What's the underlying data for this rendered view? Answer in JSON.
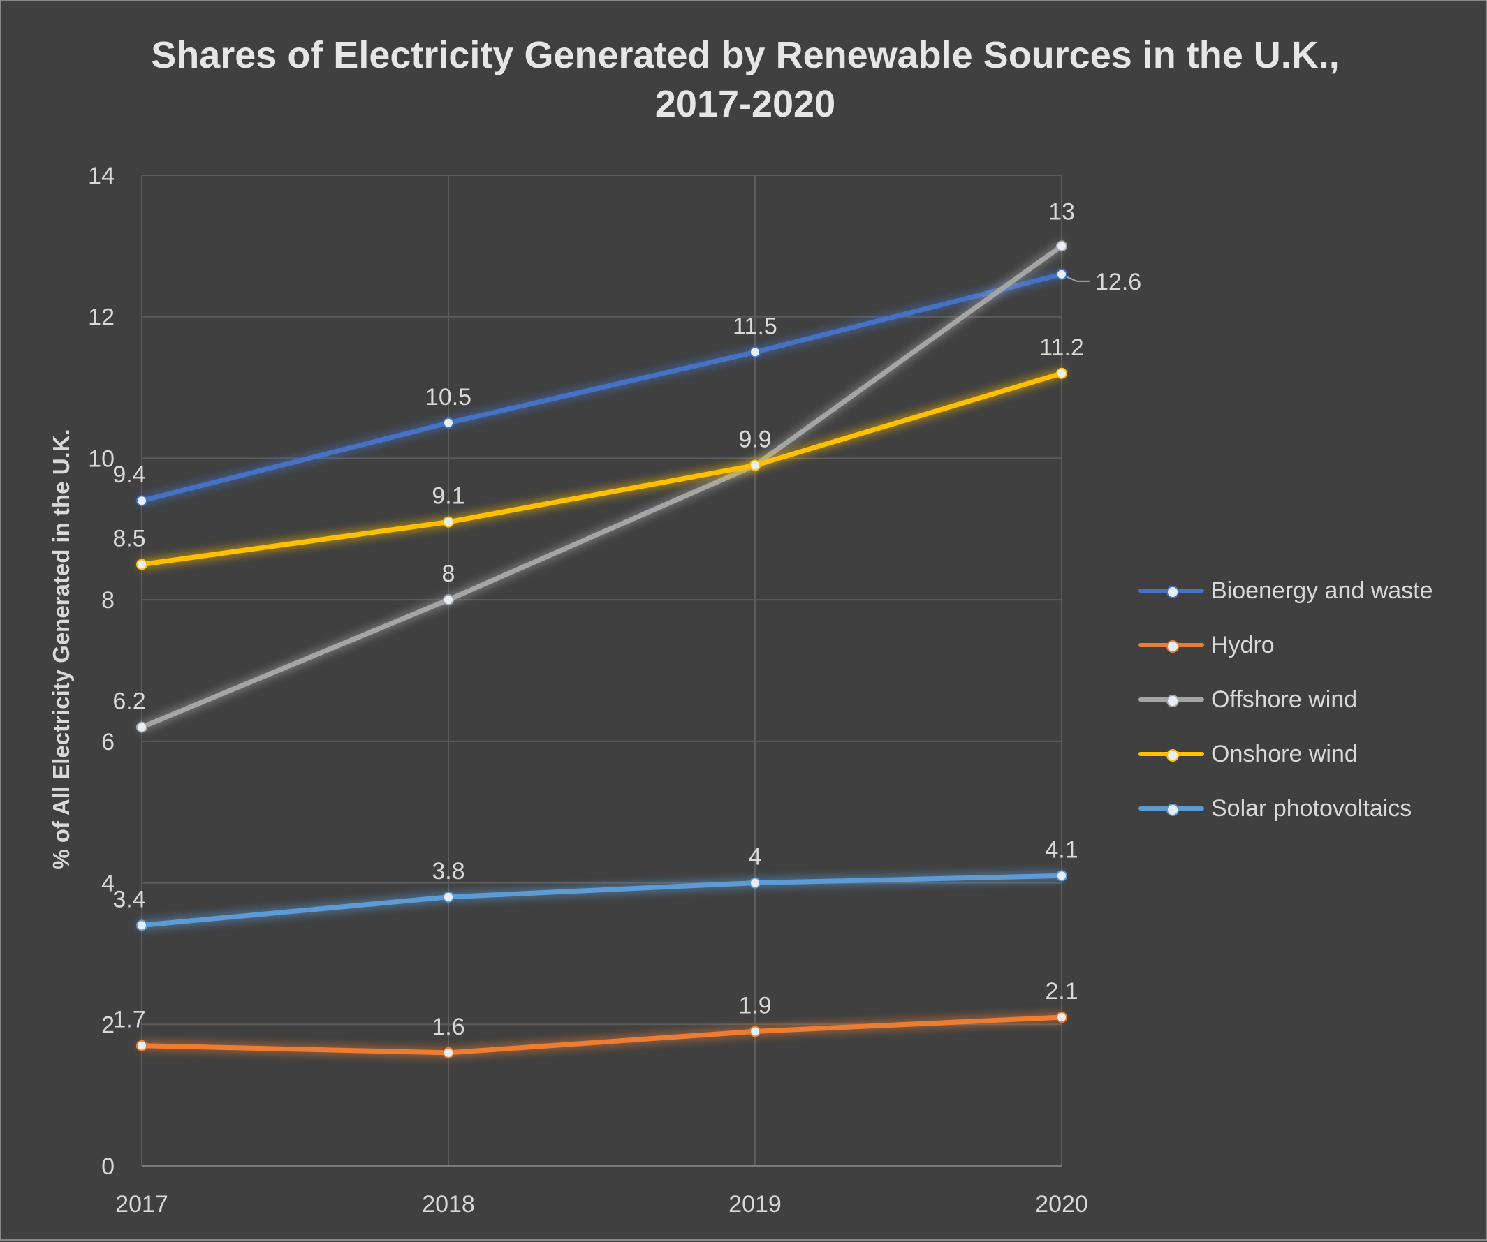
{
  "chart_data": {
    "type": "line",
    "title": "Shares of Electricity Generated by Renewable Sources in the U.K., 2017-2020",
    "xlabel": "",
    "ylabel": "% of All Electricity Generated in the U.K.",
    "categories": [
      "2017",
      "2018",
      "2019",
      "2020"
    ],
    "ylim": [
      0,
      14
    ],
    "yticks": [
      0,
      2,
      4,
      6,
      8,
      10,
      12,
      14
    ],
    "grid": true,
    "legend_position": "right",
    "series": [
      {
        "name": "Bioenergy and waste",
        "color": "#4472c4",
        "values": [
          9.4,
          10.5,
          11.5,
          12.6
        ]
      },
      {
        "name": "Hydro",
        "color": "#ed7d31",
        "values": [
          1.7,
          1.6,
          1.9,
          2.1
        ]
      },
      {
        "name": "Offshore wind",
        "color": "#a5a5a5",
        "values": [
          6.2,
          8,
          9.9,
          13
        ]
      },
      {
        "name": "Onshore wind",
        "color": "#ffc000",
        "values": [
          8.5,
          9.1,
          9.9,
          11.2
        ]
      },
      {
        "name": "Solar photovoltaics",
        "color": "#5b9bd5",
        "values": [
          3.4,
          3.8,
          4,
          4.1
        ]
      }
    ]
  }
}
